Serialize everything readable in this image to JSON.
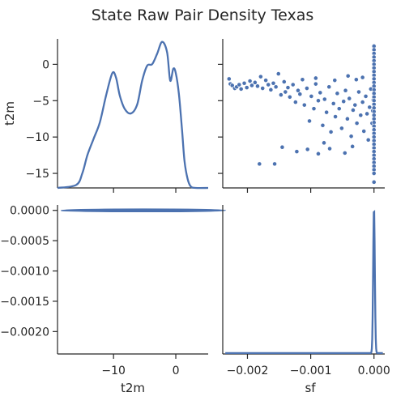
{
  "title": "State Raw Pair Density Texas",
  "colors": {
    "series": "#4c72b0",
    "axis": "#262626"
  },
  "chart_data": [
    {
      "panel": "t2m-density",
      "type": "line",
      "xlabel": "",
      "ylabel": "t2m",
      "xlim": [
        -19,
        5.2
      ],
      "ylim": [
        -17,
        3.5
      ],
      "yticks": [
        0,
        -5,
        -10,
        -15
      ],
      "x": [
        -19,
        -16,
        -15,
        -14.2,
        -13.2,
        -12.2,
        -11.2,
        -10.2,
        -9.6,
        -9,
        -8.2,
        -7.2,
        -6.2,
        -5.4,
        -4.6,
        -3.8,
        -3,
        -2.2,
        -1.4,
        -0.9,
        -0.4,
        0,
        0.5,
        1,
        1.4,
        1.9,
        2.4,
        3.2,
        5.2
      ],
      "density_height_fraction": [
        0,
        0.02,
        0.1,
        0.22,
        0.33,
        0.44,
        0.62,
        0.77,
        0.74,
        0.62,
        0.53,
        0.5,
        0.56,
        0.72,
        0.82,
        0.83,
        0.9,
        0.98,
        0.91,
        0.72,
        0.8,
        0.77,
        0.63,
        0.39,
        0.18,
        0.06,
        0.01,
        0,
        0
      ]
    },
    {
      "panel": "sf-vs-t2m-scatter",
      "type": "scatter",
      "xlabel": "",
      "ylabel": "",
      "xlim": [
        -0.00239,
        0.00017
      ],
      "ylim": [
        -17,
        3.5
      ],
      "xticks": [
        -0.002,
        -0.001,
        0.0
      ],
      "points": [
        [
          -0.00229,
          -2
        ],
        [
          -0.00227,
          -2.7
        ],
        [
          -0.00224,
          -2.9
        ],
        [
          -0.0022,
          -3.3
        ],
        [
          -0.00217,
          -3.1
        ],
        [
          -0.00213,
          -2.8
        ],
        [
          -0.0021,
          -3.4
        ],
        [
          -0.00205,
          -2.6
        ],
        [
          -0.00201,
          -3.2
        ],
        [
          -0.00196,
          -2.3
        ],
        [
          -0.00193,
          -2.9
        ],
        [
          -0.00188,
          -2.5
        ],
        [
          -0.00184,
          -3
        ],
        [
          -0.00179,
          -1.7
        ],
        [
          -0.00176,
          -3.3
        ],
        [
          -0.00171,
          -2.2
        ],
        [
          -0.00167,
          -2.8
        ],
        [
          -0.00163,
          -3.5
        ],
        [
          -0.00159,
          -2.6
        ],
        [
          -0.00155,
          -3.1
        ],
        [
          -0.00151,
          -1.3
        ],
        [
          -0.00147,
          -4.2
        ],
        [
          -0.00142,
          -2.4
        ],
        [
          -0.0014,
          -3.8
        ],
        [
          -0.00136,
          -3.2
        ],
        [
          -0.00133,
          -4.5
        ],
        [
          -0.00128,
          -2.8
        ],
        [
          -0.00124,
          -5.2
        ],
        [
          -0.0012,
          -3.6
        ],
        [
          -0.00117,
          -4.1
        ],
        [
          -0.00113,
          -2.1
        ],
        [
          -0.0011,
          -5.6
        ],
        [
          -0.00106,
          -3.3
        ],
        [
          -0.00102,
          -7.8
        ],
        [
          -0.00099,
          -4.4
        ],
        [
          -0.00095,
          -6.1
        ],
        [
          -0.00092,
          -2.7
        ],
        [
          -0.00088,
          -5
        ],
        [
          -0.00085,
          -3.9
        ],
        [
          -0.00081,
          -8.4
        ],
        [
          -0.00078,
          -4.8
        ],
        [
          -0.00075,
          -6.6
        ],
        [
          -0.00071,
          -3.1
        ],
        [
          -0.00068,
          -9.3
        ],
        [
          -0.00064,
          -5.4
        ],
        [
          -0.00061,
          -7.2
        ],
        [
          -0.00058,
          -4
        ],
        [
          -0.00055,
          -6.1
        ],
        [
          -0.00051,
          -8.8
        ],
        [
          -0.00048,
          -5.1
        ],
        [
          -0.00045,
          -3.6
        ],
        [
          -0.00042,
          -7.5
        ],
        [
          -0.00039,
          -4.7
        ],
        [
          -0.00036,
          -9.9
        ],
        [
          -0.00033,
          -6.3
        ],
        [
          -0.0003,
          -5.6
        ],
        [
          -0.00027,
          -8.1
        ],
        [
          -0.00024,
          -3.8
        ],
        [
          -0.00021,
          -7
        ],
        [
          -0.00018,
          -5.2
        ],
        [
          -0.00016,
          -9.2
        ],
        [
          -0.00013,
          -4.4
        ],
        [
          -0.00011,
          -6.8
        ],
        [
          -9e-05,
          -10.4
        ],
        [
          -7e-05,
          -5.9
        ],
        [
          -5e-05,
          -3.4
        ],
        [
          -3e-05,
          -8.1
        ],
        [
          -2e-05,
          -6.4
        ],
        [
          -1e-05,
          -4.9
        ],
        [
          -0.00181,
          -13.7
        ],
        [
          -0.00157,
          -13.7
        ],
        [
          -0.00145,
          -11.4
        ],
        [
          -0.00122,
          -12
        ],
        [
          -0.00105,
          -11.7
        ],
        [
          -0.00088,
          -12.3
        ],
        [
          -0.00079,
          -10.8
        ],
        [
          -0.0007,
          -11.6
        ],
        [
          -0.00046,
          -12.2
        ],
        [
          -0.00034,
          -11.3
        ],
        [
          -0.00092,
          -1.9
        ],
        [
          -0.00062,
          -2.2
        ],
        [
          -0.00041,
          -1.6
        ],
        [
          -0.00028,
          -2.1
        ],
        [
          -0.00018,
          -1.8
        ],
        [
          0,
          2.5
        ],
        [
          0,
          2
        ],
        [
          0,
          1.5
        ],
        [
          0,
          1
        ],
        [
          0,
          0.5
        ],
        [
          0,
          0
        ],
        [
          0,
          -0.5
        ],
        [
          0,
          -1
        ],
        [
          0,
          -1.5
        ],
        [
          0,
          -2
        ],
        [
          0,
          -2.5
        ],
        [
          0,
          -3
        ],
        [
          0,
          -3.5
        ],
        [
          0,
          -4
        ],
        [
          0,
          -4.5
        ],
        [
          0,
          -5
        ],
        [
          0,
          -5.5
        ],
        [
          0,
          -6
        ],
        [
          0,
          -6.5
        ],
        [
          0,
          -7
        ],
        [
          0,
          -7.5
        ],
        [
          0,
          -8
        ],
        [
          0,
          -8.5
        ],
        [
          0,
          -9
        ],
        [
          0,
          -9.5
        ],
        [
          0,
          -10
        ],
        [
          0,
          -10.5
        ],
        [
          0,
          -11
        ],
        [
          0,
          -11.5
        ],
        [
          0,
          -12
        ],
        [
          0,
          -12.5
        ],
        [
          0,
          -13
        ],
        [
          0,
          -13.5
        ],
        [
          0,
          -14
        ],
        [
          0,
          -14.5
        ],
        [
          0,
          -15
        ],
        [
          0,
          -16.2
        ]
      ]
    },
    {
      "panel": "t2m-vs-sf-kde",
      "type": "line",
      "xlabel": "t2m",
      "ylabel": "",
      "xlim": [
        -19,
        5.2
      ],
      "ylim": [
        -0.00237,
        9e-05
      ],
      "xticks": [
        -10,
        0
      ],
      "yticks": [
        0.0,
        -0.0005,
        -0.001,
        -0.0015,
        -0.002
      ],
      "ytick_labels": [
        "0.0000",
        "−0.0005",
        "−0.0010",
        "−0.0015",
        "−0.0020"
      ],
      "contour_center": [
        -5.2,
        0.0
      ],
      "contour_half_widths": [
        13.2,
        11.8,
        10.2,
        8.6,
        7,
        5.4,
        3.6
      ],
      "contour_half_heights": [
        2.1e-05,
        1.6e-05,
        1.2e-05,
        9e-06,
        6e-06,
        4e-06,
        2e-06
      ]
    },
    {
      "panel": "sf-density",
      "type": "line",
      "xlabel": "sf",
      "ylabel": "",
      "xlim": [
        -0.00239,
        0.00017
      ],
      "xticks": [
        -0.002,
        -0.001,
        0.0
      ],
      "xtick_labels": [
        "−0.002",
        "−0.001",
        "0.000"
      ],
      "peak_x": 0.0,
      "peak_height_fraction": 0.98,
      "peak_sigma": 1.3e-05,
      "baseline_height_fraction": 0.006
    }
  ]
}
